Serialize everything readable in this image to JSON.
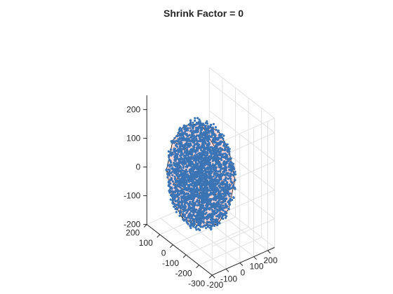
{
  "chart_data": {
    "type": "scatter",
    "title": "Shrink Factor = 0",
    "x_ticks": [
      "200",
      "100",
      "0",
      "-100",
      "-200",
      "-300"
    ],
    "y_ticks": [
      "-200",
      "-100",
      "0",
      "100",
      "200"
    ],
    "z_ticks": [
      "-200",
      "-100",
      "0",
      "100",
      "200"
    ],
    "x_tick_values": [
      200,
      100,
      0,
      -100,
      -200,
      -300
    ],
    "y_tick_values": [
      -200,
      -100,
      0,
      100,
      200
    ],
    "z_tick_values": [
      -200,
      -100,
      0,
      100,
      200
    ],
    "xlim": [
      -300,
      200
    ],
    "ylim": [
      -200,
      250
    ],
    "zlim": [
      -200,
      250
    ],
    "grid": true,
    "series_color": "#3a74b4",
    "hull_face_color": "#ffcccc",
    "hull_edge_color": "#000000",
    "point_cloud": {
      "approx_count": 2500,
      "radius_data": 200
    },
    "hull_vertices_3d": [
      [
        180,
        0,
        0
      ],
      [
        -180,
        0,
        0
      ],
      [
        0,
        180,
        0
      ],
      [
        0,
        -180,
        0
      ],
      [
        0,
        0,
        180
      ],
      [
        0,
        0,
        -180
      ],
      [
        127,
        127,
        0
      ],
      [
        127,
        -127,
        0
      ],
      [
        -127,
        127,
        0
      ],
      [
        -127,
        -127,
        0
      ],
      [
        127,
        0,
        127
      ],
      [
        127,
        0,
        -127
      ],
      [
        -127,
        0,
        127
      ],
      [
        -127,
        0,
        -127
      ],
      [
        0,
        127,
        127
      ],
      [
        0,
        127,
        -127
      ],
      [
        0,
        -127,
        127
      ],
      [
        0,
        -127,
        -127
      ],
      [
        104,
        104,
        104
      ],
      [
        104,
        104,
        -104
      ],
      [
        104,
        -104,
        104
      ],
      [
        104,
        -104,
        -104
      ],
      [
        -104,
        104,
        104
      ],
      [
        -104,
        104,
        -104
      ],
      [
        -104,
        -104,
        104
      ],
      [
        -104,
        -104,
        -104
      ]
    ]
  }
}
